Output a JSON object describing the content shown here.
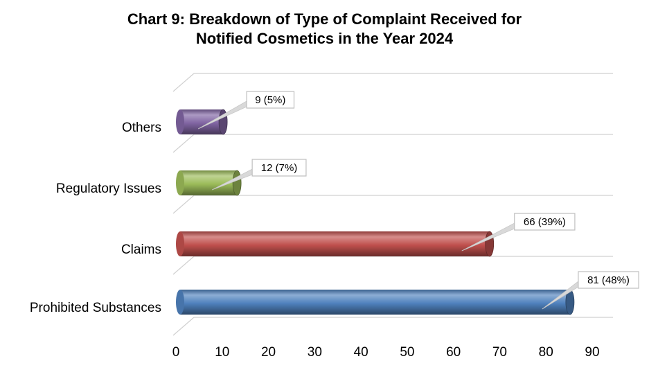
{
  "chart_data": {
    "type": "bar",
    "orientation": "horizontal",
    "style": "3d-cylinder",
    "title_lines": [
      "Chart 9: Breakdown of Type of Complaint Received for",
      "Notified Cosmetics in the Year 2024"
    ],
    "categories": [
      "Prohibited Substances",
      "Claims",
      "Regulatory Issues",
      "Others"
    ],
    "values": [
      81,
      66,
      12,
      9
    ],
    "data_labels": [
      "81 (48%)",
      "66 (39%)",
      "12 (7%)",
      "9 (5%)"
    ],
    "bar_colors": [
      "#4F81BD",
      "#C0504D",
      "#9BBB59",
      "#8064A2"
    ],
    "xlim": [
      0,
      90
    ],
    "xticks": [
      0,
      10,
      20,
      30,
      40,
      50,
      60,
      70,
      80,
      90
    ],
    "xlabel": "",
    "ylabel": "",
    "gridlines": true,
    "legend": "none"
  }
}
